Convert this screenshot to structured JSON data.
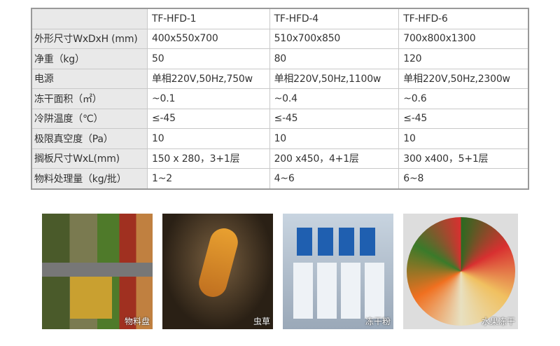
{
  "table": {
    "header": [
      "",
      "TF-HFD-1",
      "TF-HFD-4",
      "TF-HFD-6"
    ],
    "rows": [
      [
        "外形尺寸WxDxH (mm)",
        "400x550x700",
        "510x700x850",
        "700x800x1300"
      ],
      [
        "净重（kg）",
        "50",
        "80",
        "120"
      ],
      [
        "电源",
        "单相220V,50Hz,750w",
        "单相220V,50Hz,1100w",
        "单相220V,50Hz,2300w"
      ],
      [
        "冻干面积（㎡）",
        "~0.1",
        "~0.4",
        "~0.6"
      ],
      [
        "冷阱温度（℃）",
        "≤-45",
        "≤-45",
        "≤-45"
      ],
      [
        "极限真空度（Pa）",
        "10",
        "10",
        "10"
      ],
      [
        "搁板尺寸WxL(mm)",
        "150 x 280，3+1层",
        "200 x450，4+1层",
        "300 x400，5+1层"
      ],
      [
        "物料处理量（kg/批）",
        "1~2",
        "4~6",
        "6~8"
      ]
    ]
  },
  "photos": [
    {
      "label": "物料盘"
    },
    {
      "label": "虫草"
    },
    {
      "label": "冻干粉"
    },
    {
      "label": "水果冻干"
    }
  ]
}
